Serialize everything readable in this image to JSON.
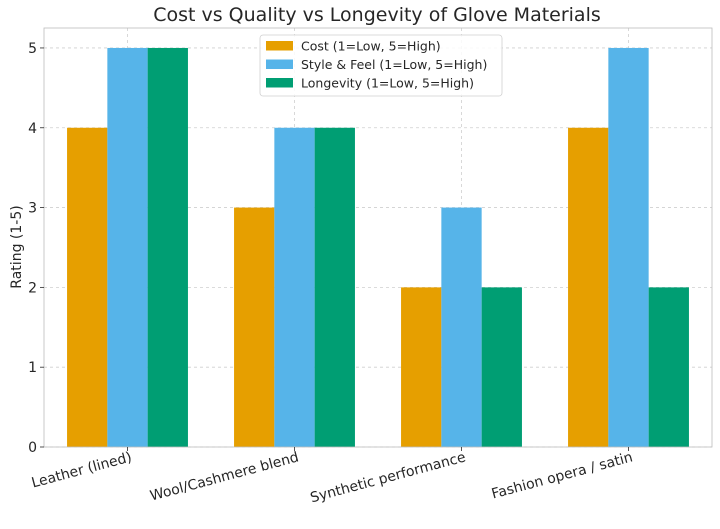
{
  "chart_data": {
    "type": "bar",
    "title": "Cost vs Quality vs Longevity of Glove Materials",
    "xlabel": "",
    "ylabel": "Rating (1-5)",
    "categories": [
      "Leather (lined)",
      "Wool/Cashmere blend",
      "Synthetic performance",
      "Fashion opera / satin"
    ],
    "series": [
      {
        "name": "Cost (1=Low, 5=High)",
        "values": [
          4,
          3,
          2,
          4
        ],
        "color": "#E69F00"
      },
      {
        "name": "Style & Feel (1=Low, 5=High)",
        "values": [
          5,
          4,
          3,
          5
        ],
        "color": "#56B4E9"
      },
      {
        "name": "Longevity (1=Low, 5=High)",
        "values": [
          5,
          4,
          2,
          2
        ],
        "color": "#009E73"
      }
    ],
    "ylim": [
      0,
      5.25
    ],
    "yticks": [
      0,
      1,
      2,
      3,
      4,
      5
    ],
    "grid": true,
    "legend_position": "top-center"
  }
}
